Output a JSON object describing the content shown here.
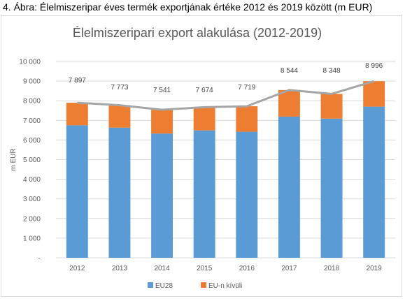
{
  "caption": "4. Ábra: Élelmiszeripar éves termék exportjának értéke 2012 és 2019 között (m EUR)",
  "chart_data": {
    "type": "bar",
    "stacked": true,
    "title": "Élelmiszeripari export alakulása (2012-2019)",
    "xlabel": "",
    "ylabel": "m EUR",
    "ylim": [
      0,
      10000
    ],
    "ytick_values": [
      0,
      1000,
      2000,
      3000,
      4000,
      5000,
      6000,
      7000,
      8000,
      9000,
      10000
    ],
    "ytick_labels": [
      "-",
      "1 000",
      "2 000",
      "3 000",
      "4 000",
      "5 000",
      "6 000",
      "7 000",
      "8 000",
      "9 000",
      "10 000"
    ],
    "grid": true,
    "legend_position": "bottom",
    "categories": [
      "2012",
      "2013",
      "2014",
      "2015",
      "2016",
      "2017",
      "2018",
      "2019"
    ],
    "series": [
      {
        "name": "EU28",
        "color": "#5b9bd5",
        "values": [
          6750,
          6630,
          6330,
          6490,
          6420,
          7190,
          7090,
          7700
        ]
      },
      {
        "name": "EU-n kívüli",
        "color": "#ed7d31",
        "values": [
          1147,
          1143,
          1211,
          1184,
          1299,
          1354,
          1258,
          1296
        ]
      }
    ],
    "total_line": {
      "color": "#a5a5a5",
      "values": [
        7897,
        7773,
        7541,
        7674,
        7719,
        8544,
        8348,
        8996
      ]
    },
    "total_labels": [
      "7 897",
      "7 773",
      "7 541",
      "7 674",
      "7 719",
      "8 544",
      "8 348",
      "8 996"
    ]
  }
}
